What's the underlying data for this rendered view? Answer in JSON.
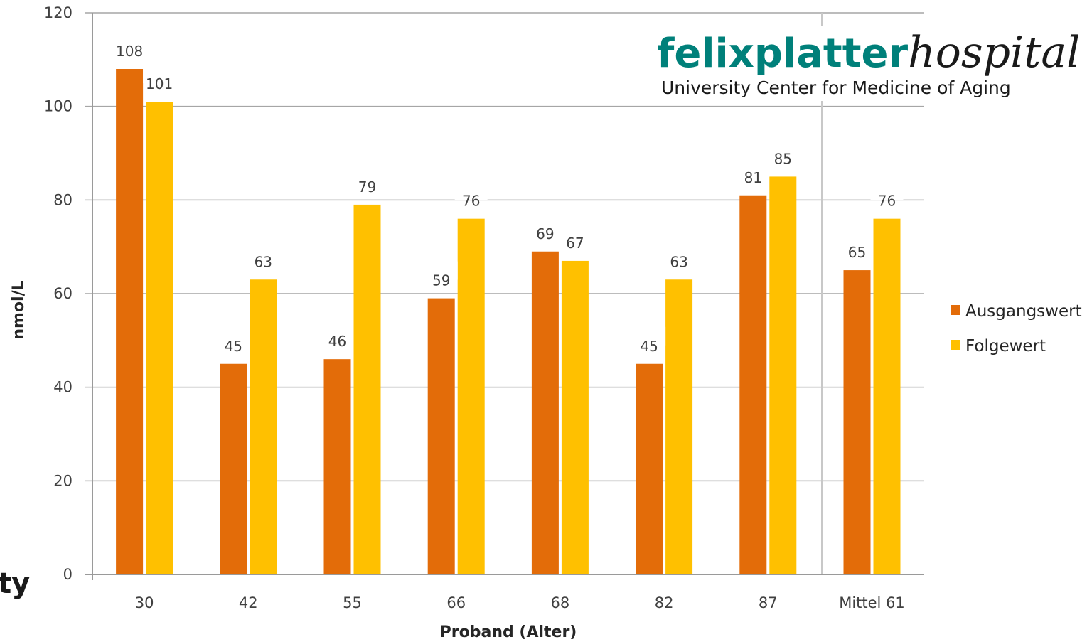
{
  "chart_data": {
    "type": "bar",
    "categories": [
      "30",
      "42",
      "55",
      "66",
      "68",
      "82",
      "87",
      "Mittel 61"
    ],
    "series": [
      {
        "name": "Ausgangswert",
        "color": "#e36c09",
        "values": [
          108,
          45,
          46,
          59,
          69,
          45,
          81,
          65
        ]
      },
      {
        "name": "Folgewert",
        "color": "#ffc000",
        "values": [
          101,
          63,
          79,
          76,
          67,
          63,
          85,
          76
        ]
      }
    ],
    "title": "",
    "xlabel": "Proband (Alter)",
    "ylabel": "nmol/L",
    "ylim": [
      0,
      120
    ],
    "yticks": [
      "0",
      "20",
      "40",
      "60",
      "80",
      "100",
      "120"
    ],
    "grid": true,
    "legend_position": "right"
  },
  "logo": {
    "main": "felixplatter",
    "italic": "hospital",
    "subtitle": "University Center for Medicine of Aging"
  },
  "edge_fragment": "ty"
}
